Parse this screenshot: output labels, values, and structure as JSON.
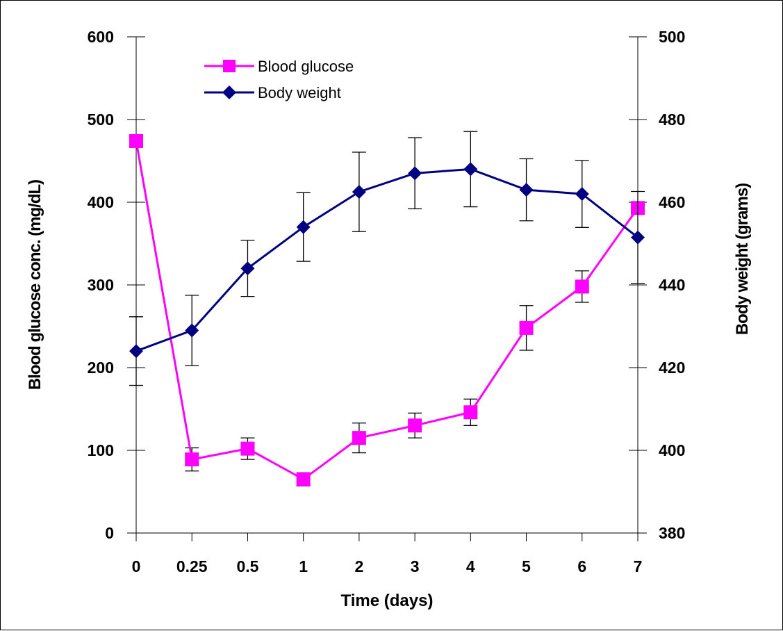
{
  "chart_data": {
    "type": "line",
    "categories": [
      "0",
      "0.25",
      "0.5",
      "1",
      "2",
      "3",
      "4",
      "5",
      "6",
      "7"
    ],
    "xlabel": "Time (days)",
    "ylabel_left": "Blood glucose conc. (mg/dL)",
    "ylabel_right": "Body weight (grams)",
    "ylim_left": [
      0,
      600
    ],
    "ylim_right": [
      380,
      500
    ],
    "yticks_left": [
      "0",
      "100",
      "200",
      "300",
      "400",
      "500",
      "600"
    ],
    "yticks_right": [
      "380",
      "400",
      "420",
      "440",
      "460",
      "480",
      "500"
    ],
    "grid": false,
    "legend_position": "top-center",
    "series": [
      {
        "name": "Blood glucose",
        "axis": "left",
        "color": "#ff00ff",
        "marker": "square",
        "values": [
          474,
          89,
          102,
          65,
          115,
          130,
          146,
          248,
          298,
          393
        ],
        "error": [
          0,
          14,
          13,
          8,
          18,
          15,
          16,
          27,
          19,
          0
        ]
      },
      {
        "name": "Body weight",
        "axis": "right",
        "color": "#000080",
        "marker": "diamond",
        "values": [
          424,
          429,
          444,
          454,
          462.5,
          467,
          468,
          463,
          462,
          451.5
        ],
        "error": [
          8.3,
          8.5,
          6.8,
          8.3,
          9.6,
          8.6,
          9.1,
          7.5,
          8.1,
          11.1
        ]
      }
    ]
  }
}
